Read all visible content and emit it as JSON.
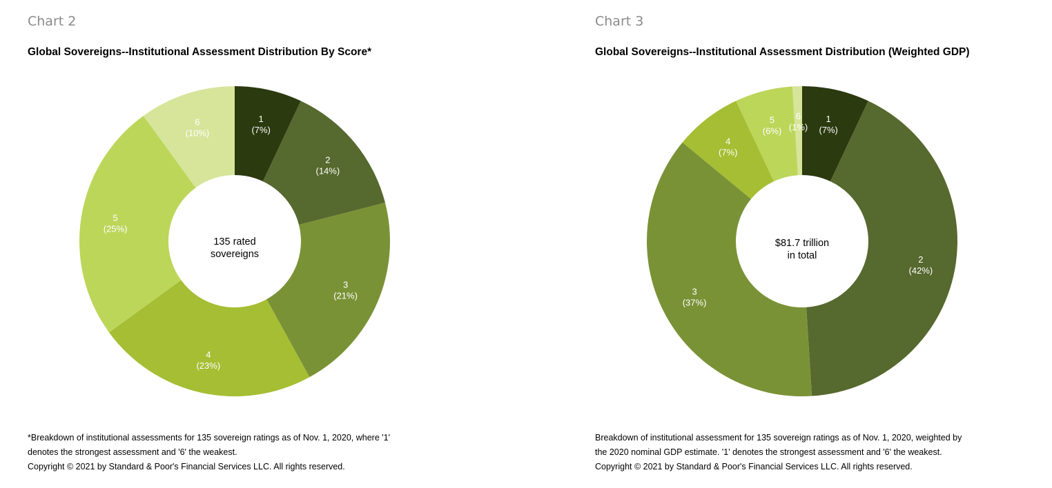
{
  "charts": [
    {
      "label": "Chart 2",
      "title": "Global Sovereigns--Institutional Assessment Distribution By Score*",
      "center_line1": "135 rated",
      "center_line2": "sovereigns",
      "footnote_lines": [
        "*Breakdown of institutional assessments for 135 sovereign ratings as of Nov. 1, 2020, where '1'",
        "denotes the strongest assessment and '6' the weakest.",
        "Copyright © 2021 by Standard & Poor's Financial Services LLC. All rights reserved."
      ]
    },
    {
      "label": "Chart 3",
      "title": "Global Sovereigns--Institutional Assessment Distribution (Weighted GDP)",
      "center_line1": "$81.7 trillion",
      "center_line2": "in total",
      "footnote_lines": [
        "Breakdown of institutional assessment for 135 sovereign ratings as of Nov. 1, 2020, weighted by",
        "the 2020 nominal GDP estimate. '1' denotes the strongest assessment and '6' the weakest.",
        "Copyright © 2021 by Standard & Poor's Financial Services LLC. All rights reserved."
      ]
    }
  ],
  "chart_data": [
    {
      "type": "pie",
      "donut": true,
      "title": "Global Sovereigns--Institutional Assessment Distribution By Score*",
      "categories": [
        "1",
        "2",
        "3",
        "4",
        "5",
        "6"
      ],
      "values": [
        7,
        14,
        21,
        23,
        25,
        10
      ],
      "value_labels": [
        "(7%)",
        "(14%)",
        "(21%)",
        "(23%)",
        "(25%)",
        "(10%)"
      ],
      "colors": [
        "#2b3a0f",
        "#56692e",
        "#7a9236",
        "#a5be33",
        "#bcd65a",
        "#d6e59a"
      ]
    },
    {
      "type": "pie",
      "donut": true,
      "title": "Global Sovereigns--Institutional Assessment Distribution (Weighted GDP)",
      "categories": [
        "1",
        "2",
        "3",
        "4",
        "5",
        "6"
      ],
      "values": [
        7,
        42,
        37,
        7,
        6,
        1
      ],
      "value_labels": [
        "(7%)",
        "(42%)",
        "(37%)",
        "(7%)",
        "(6%)",
        "(1%)"
      ],
      "colors": [
        "#2b3a0f",
        "#56692e",
        "#7a9236",
        "#a5be33",
        "#bcd65a",
        "#d6e59a"
      ]
    }
  ]
}
